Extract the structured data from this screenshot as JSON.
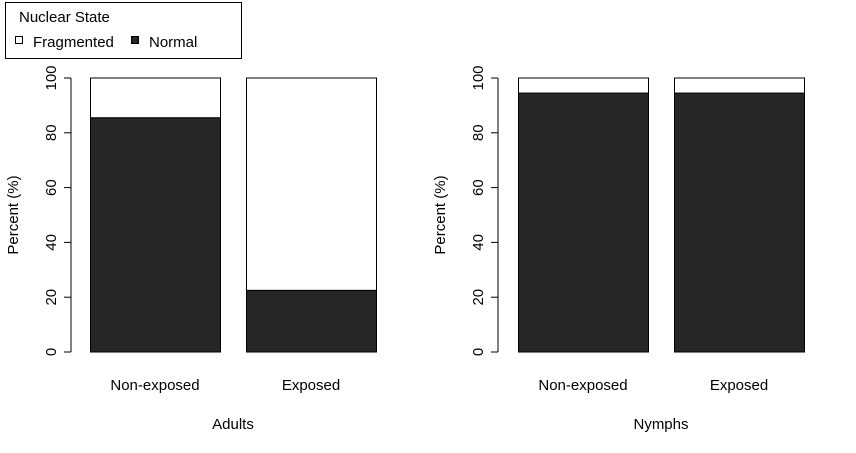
{
  "legend": {
    "title": "Nuclear State",
    "items": [
      {
        "label": "Fragmented",
        "color": "#ffffff"
      },
      {
        "label": "Normal",
        "color": "#262626"
      }
    ]
  },
  "chart_data": [
    {
      "type": "bar",
      "stacked": true,
      "xlabel": "Adults",
      "ylabel": "Percent (%)",
      "ylim": [
        0,
        100
      ],
      "yticks": [
        0,
        20,
        40,
        60,
        80,
        100
      ],
      "categories": [
        "Non-exposed",
        "Exposed"
      ],
      "series": [
        {
          "name": "Normal",
          "color": "#262626",
          "values": [
            85.5,
            22.5
          ]
        },
        {
          "name": "Fragmented",
          "color": "#ffffff",
          "values": [
            14.5,
            77.5
          ]
        }
      ],
      "grid": false
    },
    {
      "type": "bar",
      "stacked": true,
      "xlabel": "Nymphs",
      "ylabel": "Percent (%)",
      "ylim": [
        0,
        100
      ],
      "yticks": [
        0,
        20,
        40,
        60,
        80,
        100
      ],
      "categories": [
        "Non-exposed",
        "Exposed"
      ],
      "series": [
        {
          "name": "Normal",
          "color": "#262626",
          "values": [
            94.5,
            94.5
          ]
        },
        {
          "name": "Fragmented",
          "color": "#ffffff",
          "values": [
            5.5,
            5.5
          ]
        }
      ],
      "grid": false
    }
  ]
}
